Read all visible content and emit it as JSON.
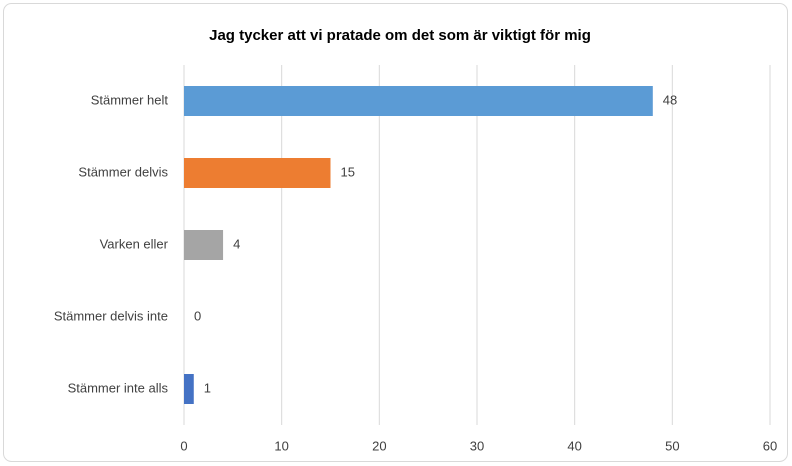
{
  "chart_data": {
    "type": "bar",
    "orientation": "horizontal",
    "title": "Jag tycker att vi pratade om det som är viktigt för mig",
    "categories": [
      "Stämmer helt",
      "Stämmer delvis",
      "Varken eller",
      "Stämmer delvis inte",
      "Stämmer inte alls"
    ],
    "values": [
      48,
      15,
      4,
      0,
      1
    ],
    "colors": [
      "#5b9bd5",
      "#ed7d31",
      "#a5a5a5",
      "#ffc000",
      "#4472c4"
    ],
    "xlim": [
      0,
      60
    ],
    "xticks": [
      0,
      10,
      20,
      30,
      40,
      50,
      60
    ],
    "grid": true
  }
}
